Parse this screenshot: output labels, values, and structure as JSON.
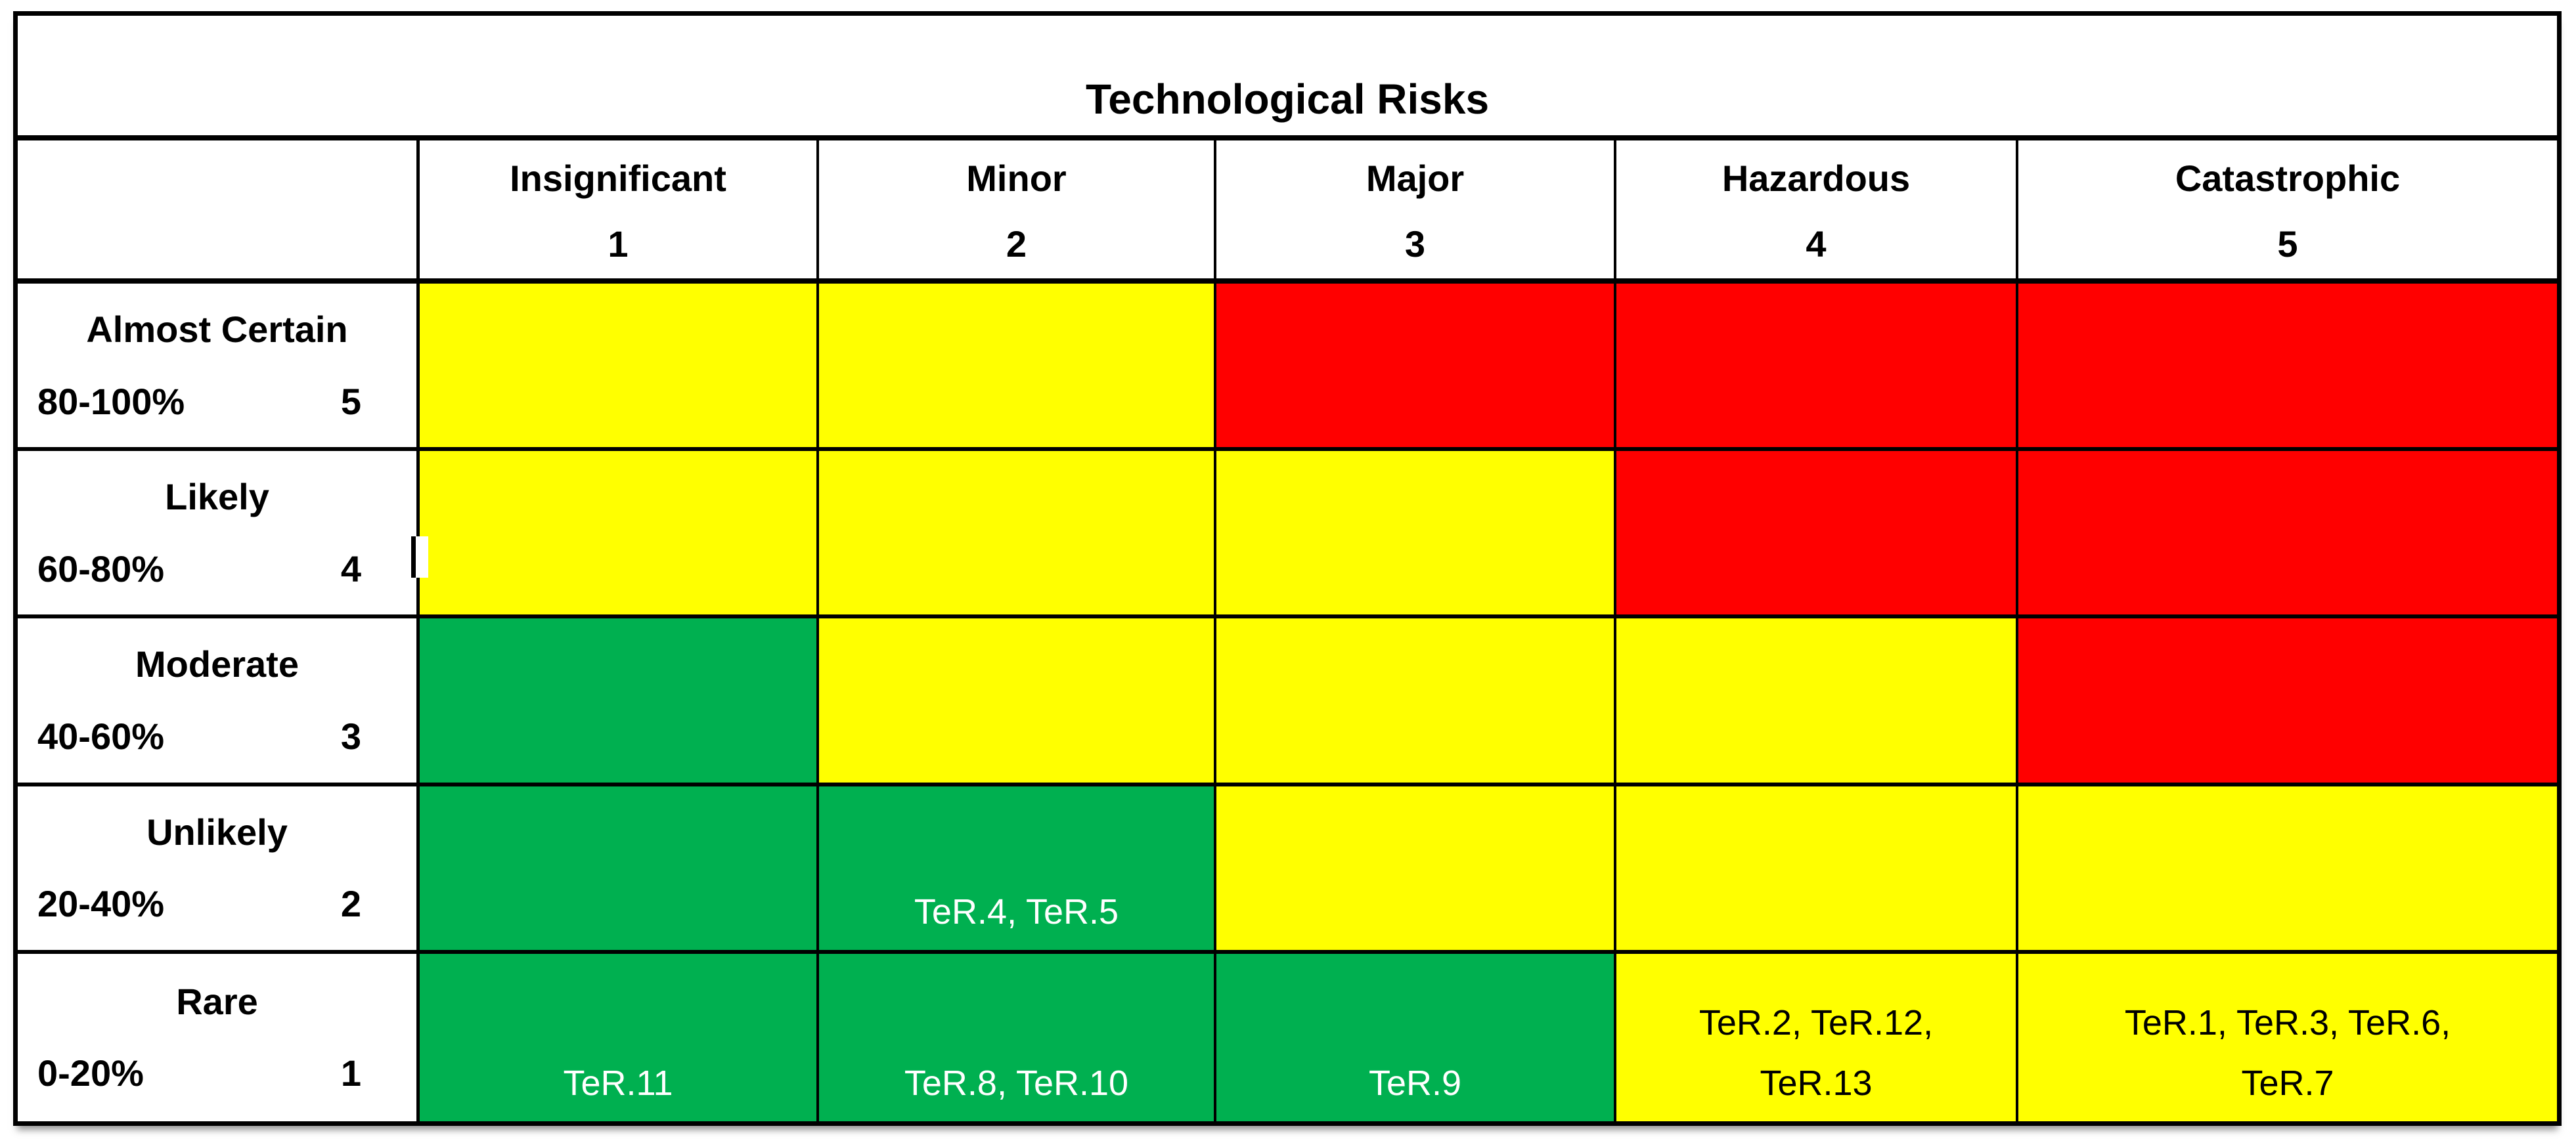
{
  "chart_data": {
    "type": "heatmap",
    "title": "Technological Risks",
    "x_axis": {
      "name": "severity",
      "categories": [
        {
          "label": "Insignificant",
          "value": "1"
        },
        {
          "label": "Minor",
          "value": "2"
        },
        {
          "label": "Major",
          "value": "3"
        },
        {
          "label": "Hazardous",
          "value": "4"
        },
        {
          "label": "Catastrophic",
          "value": "5"
        }
      ]
    },
    "y_axis": {
      "name": "likelihood",
      "categories": [
        {
          "label": "Almost Certain",
          "range": "80-100%",
          "value": "5"
        },
        {
          "label": "Likely",
          "range": "60-80%",
          "value": "4"
        },
        {
          "label": "Moderate",
          "range": "40-60%",
          "value": "3"
        },
        {
          "label": "Unlikely",
          "range": "20-40%",
          "value": "2"
        },
        {
          "label": "Rare",
          "range": "0-20%",
          "value": "1"
        }
      ]
    },
    "color_key": {
      "green": "#00B050",
      "yellow": "#FFFF00",
      "red": "#FF0000"
    },
    "text_color_on": {
      "green": "#FFFFFF",
      "yellow": "#000000",
      "red": "#FFFFFF"
    },
    "cells": [
      [
        {
          "color": "yellow",
          "lines": []
        },
        {
          "color": "yellow",
          "lines": []
        },
        {
          "color": "red",
          "lines": []
        },
        {
          "color": "red",
          "lines": []
        },
        {
          "color": "red",
          "lines": []
        }
      ],
      [
        {
          "color": "yellow",
          "lines": []
        },
        {
          "color": "yellow",
          "lines": []
        },
        {
          "color": "yellow",
          "lines": []
        },
        {
          "color": "red",
          "lines": []
        },
        {
          "color": "red",
          "lines": []
        }
      ],
      [
        {
          "color": "green",
          "lines": []
        },
        {
          "color": "yellow",
          "lines": []
        },
        {
          "color": "yellow",
          "lines": []
        },
        {
          "color": "yellow",
          "lines": []
        },
        {
          "color": "red",
          "lines": []
        }
      ],
      [
        {
          "color": "green",
          "lines": []
        },
        {
          "color": "green",
          "lines": [
            "TeR.4, TeR.5"
          ]
        },
        {
          "color": "yellow",
          "lines": []
        },
        {
          "color": "yellow",
          "lines": []
        },
        {
          "color": "yellow",
          "lines": []
        }
      ],
      [
        {
          "color": "green",
          "lines": [
            "TeR.11"
          ]
        },
        {
          "color": "green",
          "lines": [
            "TeR.8, TeR.10"
          ]
        },
        {
          "color": "green",
          "lines": [
            "TeR.9"
          ]
        },
        {
          "color": "yellow",
          "lines": [
            "TeR.2, TeR.12,",
            "TeR.13"
          ]
        },
        {
          "color": "yellow",
          "lines": [
            "TeR.1, TeR.3, TeR.6,",
            "TeR.7"
          ]
        }
      ]
    ]
  }
}
